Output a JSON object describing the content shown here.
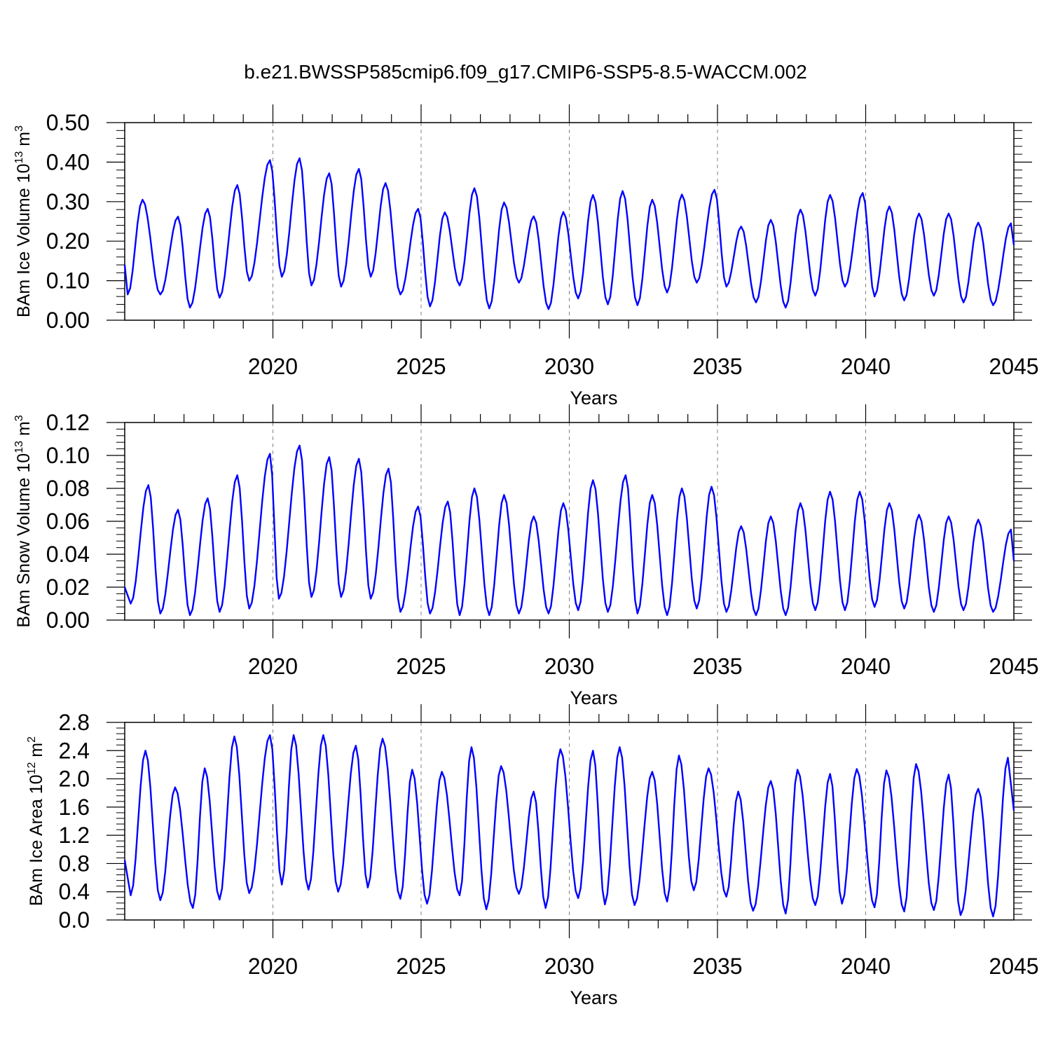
{
  "title": "b.e21.BWSSP585cmip6.f09_g17.CMIP6-SSP5-8.5-WACCM.002",
  "colors": {
    "series": "#0000ff",
    "axis": "#000000",
    "gridline": "#808080"
  },
  "chart_data": [
    {
      "type": "line",
      "ylabel": {
        "text": "BAm Ice Volume 10",
        "sup": "13",
        "unit": " m",
        "unit_sup": "3"
      },
      "xlabel": "Years",
      "xlim": [
        2015,
        2045
      ],
      "ylim": [
        0,
        0.5
      ],
      "x_ticks": [
        "2020",
        "2025",
        "2030",
        "2035",
        "2040",
        "2045"
      ],
      "y_ticks": [
        "0.00",
        "0.10",
        "0.20",
        "0.30",
        "0.40",
        "0.50"
      ],
      "grid": "vertical dashed at major x ticks",
      "series": [
        {
          "peak_year": [
            2015.6,
            2016.8,
            2017.8,
            2018.8,
            2019.9,
            2020.9,
            2021.9,
            2022.9,
            2023.8,
            2024.9,
            2025.8,
            2026.8,
            2027.8,
            2028.8,
            2029.8,
            2030.8,
            2031.8,
            2032.8,
            2033.8,
            2034.9,
            2035.8,
            2036.8,
            2037.8,
            2038.8,
            2039.9,
            2040.8,
            2041.8,
            2042.8,
            2043.8,
            2044.9
          ],
          "peak_value": [
            0.305,
            0.262,
            0.282,
            0.342,
            0.405,
            0.41,
            0.372,
            0.383,
            0.347,
            0.282,
            0.273,
            0.334,
            0.298,
            0.263,
            0.274,
            0.317,
            0.327,
            0.305,
            0.318,
            0.33,
            0.237,
            0.254,
            0.28,
            0.317,
            0.322,
            0.288,
            0.27,
            0.27,
            0.247,
            0.245
          ],
          "trough_year": [
            2015.1,
            2016.2,
            2017.2,
            2018.2,
            2019.2,
            2020.3,
            2021.3,
            2022.3,
            2023.3,
            2024.3,
            2025.3,
            2026.3,
            2027.3,
            2028.3,
            2029.3,
            2030.3,
            2031.3,
            2032.3,
            2033.3,
            2034.3,
            2035.3,
            2036.3,
            2037.3,
            2038.3,
            2039.3,
            2040.3,
            2041.3,
            2042.3,
            2043.3,
            2044.3
          ],
          "trough_value": [
            0.065,
            0.065,
            0.032,
            0.057,
            0.1,
            0.11,
            0.088,
            0.085,
            0.11,
            0.065,
            0.035,
            0.088,
            0.03,
            0.095,
            0.028,
            0.055,
            0.04,
            0.038,
            0.07,
            0.095,
            0.085,
            0.045,
            0.032,
            0.062,
            0.085,
            0.06,
            0.05,
            0.062,
            0.045,
            0.038
          ],
          "start_value": 0.14,
          "end_value": 0.19
        }
      ]
    },
    {
      "type": "line",
      "ylabel": {
        "text": "BAm Snow Volume 10",
        "sup": "13",
        "unit": " m",
        "unit_sup": "3"
      },
      "xlabel": "Years",
      "xlim": [
        2015,
        2045
      ],
      "ylim": [
        0,
        0.12
      ],
      "x_ticks": [
        "2020",
        "2025",
        "2030",
        "2035",
        "2040",
        "2045"
      ],
      "y_ticks": [
        "0.00",
        "0.02",
        "0.04",
        "0.06",
        "0.08",
        "0.10",
        "0.12"
      ],
      "grid": "vertical dashed at major x ticks",
      "series": [
        {
          "peak_year": [
            2015.8,
            2016.8,
            2017.8,
            2018.8,
            2019.9,
            2020.9,
            2021.9,
            2022.9,
            2023.9,
            2024.9,
            2025.9,
            2026.8,
            2027.8,
            2028.8,
            2029.8,
            2030.8,
            2031.9,
            2032.8,
            2033.8,
            2034.8,
            2035.8,
            2036.8,
            2037.8,
            2038.8,
            2039.8,
            2040.8,
            2041.8,
            2042.8,
            2043.8,
            2044.9
          ],
          "peak_value": [
            0.082,
            0.067,
            0.074,
            0.088,
            0.101,
            0.106,
            0.099,
            0.098,
            0.092,
            0.069,
            0.072,
            0.08,
            0.076,
            0.063,
            0.071,
            0.085,
            0.088,
            0.076,
            0.08,
            0.081,
            0.057,
            0.063,
            0.071,
            0.078,
            0.078,
            0.071,
            0.064,
            0.063,
            0.061,
            0.055
          ],
          "trough_year": [
            2015.2,
            2016.2,
            2017.2,
            2018.2,
            2019.2,
            2020.2,
            2021.3,
            2022.3,
            2023.3,
            2024.3,
            2025.3,
            2026.3,
            2027.3,
            2028.3,
            2029.3,
            2030.3,
            2031.3,
            2032.3,
            2033.3,
            2034.3,
            2035.3,
            2036.3,
            2037.3,
            2038.3,
            2039.3,
            2040.3,
            2041.3,
            2042.3,
            2043.3,
            2044.3
          ],
          "trough_value": [
            0.01,
            0.004,
            0.003,
            0.005,
            0.007,
            0.013,
            0.014,
            0.014,
            0.013,
            0.005,
            0.004,
            0.003,
            0.003,
            0.004,
            0.004,
            0.006,
            0.005,
            0.004,
            0.003,
            0.007,
            0.005,
            0.003,
            0.003,
            0.006,
            0.006,
            0.008,
            0.007,
            0.005,
            0.006,
            0.005
          ],
          "start_value": 0.02,
          "end_value": 0.036
        }
      ]
    },
    {
      "type": "line",
      "ylabel": {
        "text": "BAm Ice Area 10",
        "sup": "12",
        "unit": " m",
        "unit_sup": "2"
      },
      "xlabel": "Years",
      "xlim": [
        2015,
        2045
      ],
      "ylim": [
        0,
        2.8
      ],
      "x_ticks": [
        "2020",
        "2025",
        "2030",
        "2035",
        "2040",
        "2045"
      ],
      "y_ticks": [
        "0.0",
        "0.4",
        "0.8",
        "1.2",
        "1.6",
        "2.0",
        "2.4",
        "2.8"
      ],
      "grid": "vertical dashed at major x ticks",
      "series": [
        {
          "peak_year": [
            2015.7,
            2016.7,
            2017.7,
            2018.7,
            2019.9,
            2020.7,
            2021.7,
            2022.8,
            2023.7,
            2024.7,
            2025.7,
            2026.7,
            2027.7,
            2028.8,
            2029.7,
            2030.8,
            2031.7,
            2032.8,
            2033.7,
            2034.7,
            2035.7,
            2036.8,
            2037.7,
            2038.8,
            2039.7,
            2040.7,
            2041.7,
            2042.8,
            2043.8,
            2044.8
          ],
          "peak_value": [
            2.4,
            1.88,
            2.15,
            2.6,
            2.62,
            2.62,
            2.62,
            2.47,
            2.57,
            2.13,
            2.1,
            2.45,
            2.18,
            1.82,
            2.42,
            2.4,
            2.45,
            2.1,
            2.33,
            2.15,
            1.82,
            1.97,
            2.13,
            2.07,
            2.14,
            2.12,
            2.21,
            2.06,
            1.86,
            2.3
          ],
          "trough_year": [
            2015.2,
            2016.2,
            2017.3,
            2018.2,
            2019.2,
            2020.3,
            2021.2,
            2022.2,
            2023.2,
            2024.3,
            2025.2,
            2026.3,
            2027.2,
            2028.3,
            2029.2,
            2030.3,
            2031.2,
            2032.2,
            2033.3,
            2034.2,
            2035.3,
            2036.2,
            2037.3,
            2038.3,
            2039.2,
            2040.3,
            2041.3,
            2042.3,
            2043.2,
            2044.3
          ],
          "trough_value": [
            0.35,
            0.28,
            0.17,
            0.29,
            0.38,
            0.5,
            0.43,
            0.4,
            0.46,
            0.3,
            0.23,
            0.35,
            0.15,
            0.37,
            0.17,
            0.31,
            0.22,
            0.21,
            0.26,
            0.42,
            0.33,
            0.13,
            0.09,
            0.21,
            0.23,
            0.18,
            0.12,
            0.14,
            0.07,
            0.05
          ],
          "start_value": 0.85,
          "end_value": 1.55
        }
      ]
    }
  ]
}
